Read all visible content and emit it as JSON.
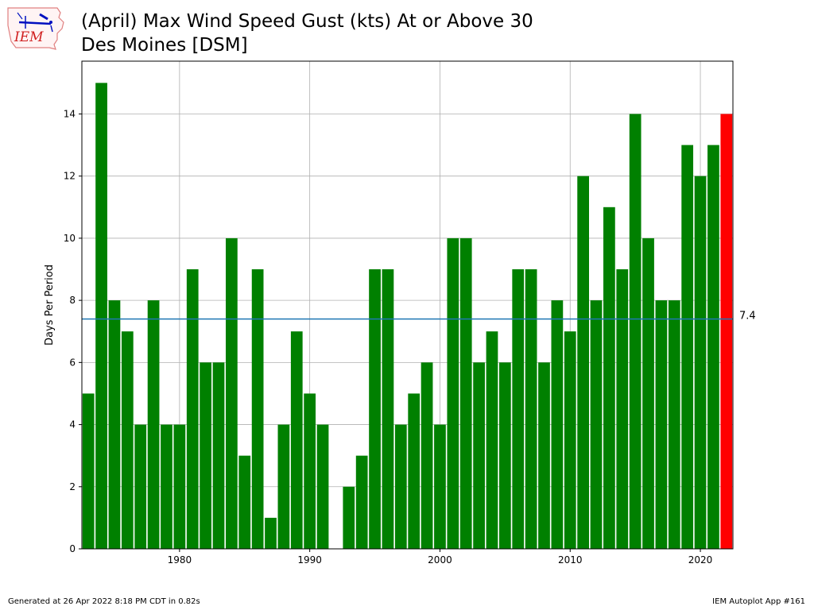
{
  "title_line1": "(April) Max Wind Speed Gust (kts) At or Above 30",
  "title_line2": "Des Moines [DSM]",
  "logo_text": "IEM",
  "footer_left": "Generated at 26 Apr 2022 8:18 PM CDT in 0.82s",
  "footer_right": "IEM Autoplot App #161",
  "chart_data": {
    "type": "bar",
    "title": "(April) Max Wind Speed Gust (kts) At or Above 30",
    "subtitle": "Des Moines [DSM]",
    "xlabel": "",
    "ylabel": "Days Per Period",
    "x": [
      1973,
      1974,
      1975,
      1976,
      1977,
      1978,
      1979,
      1980,
      1981,
      1982,
      1983,
      1984,
      1985,
      1986,
      1987,
      1988,
      1989,
      1990,
      1991,
      1992,
      1993,
      1994,
      1995,
      1996,
      1997,
      1998,
      1999,
      2000,
      2001,
      2002,
      2003,
      2004,
      2005,
      2006,
      2007,
      2008,
      2009,
      2010,
      2011,
      2012,
      2013,
      2014,
      2015,
      2016,
      2017,
      2018,
      2019,
      2020,
      2021,
      2022
    ],
    "values": [
      5,
      15,
      8,
      7,
      4,
      8,
      4,
      4,
      9,
      6,
      6,
      10,
      3,
      9,
      1,
      4,
      7,
      5,
      4,
      0,
      2,
      3,
      9,
      9,
      4,
      5,
      6,
      4,
      10,
      10,
      6,
      7,
      6,
      9,
      9,
      6,
      8,
      7,
      12,
      8,
      11,
      9,
      14,
      10,
      8,
      8,
      13,
      12,
      13,
      14
    ],
    "xlim": [
      1972.5,
      2022.5
    ],
    "ylim": [
      0,
      15.7
    ],
    "xticks": [
      1980,
      1990,
      2000,
      2010,
      2020
    ],
    "yticks": [
      0,
      2,
      4,
      6,
      8,
      10,
      12,
      14
    ],
    "average": 7.4,
    "average_label": "7.4",
    "bar_color": "#008000",
    "highlight_color": "#ff0000",
    "highlight_year": 2022,
    "average_line_color": "#1f77b4",
    "grid": true
  }
}
